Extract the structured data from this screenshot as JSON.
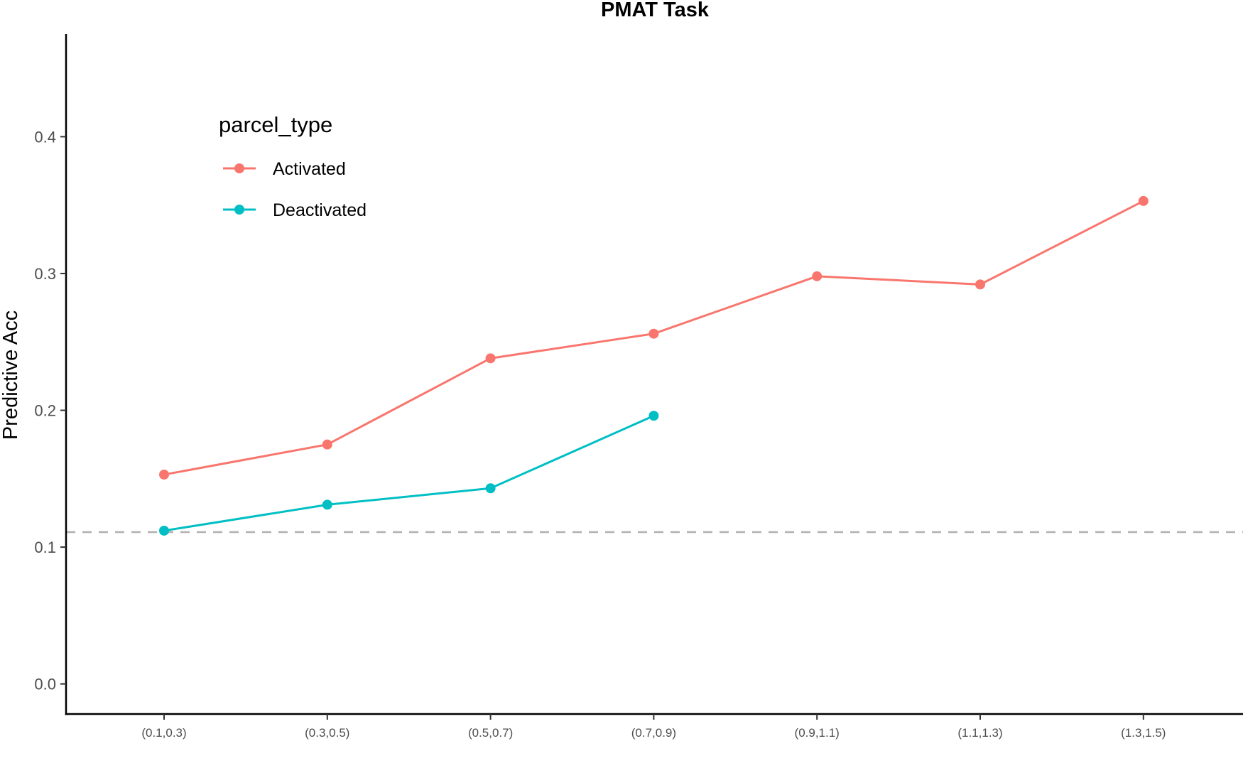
{
  "chart_data": {
    "type": "line",
    "title": "PMAT Task",
    "xlabel": "",
    "ylabel": "Predictive Acc",
    "categories": [
      "(0.1,0.3)",
      "(0.3,0.5)",
      "(0.5,0.7)",
      "(0.7,0.9)",
      "(0.9,1.1)",
      "(1.1,1.3)",
      "(1.3,1.5)"
    ],
    "series": [
      {
        "name": "Activated",
        "color": "#F8766D",
        "values": [
          0.153,
          0.175,
          0.238,
          0.256,
          0.298,
          0.292,
          0.353
        ]
      },
      {
        "name": "Deactivated",
        "color": "#00BFC4",
        "values": [
          0.112,
          0.131,
          0.143,
          0.196,
          null,
          null,
          null
        ]
      }
    ],
    "ylim": [
      -0.022,
      0.475
    ],
    "yticks": [
      0.0,
      0.1,
      0.2,
      0.3,
      0.4
    ],
    "ytick_labels": [
      "0.0",
      "0.1",
      "0.2",
      "0.3",
      "0.4"
    ],
    "reference_line": {
      "y": 0.111,
      "style": "dashed",
      "color": "#b3b3b3"
    },
    "grid": false,
    "legend": {
      "title": "parcel_type",
      "placement": "top-left"
    }
  }
}
